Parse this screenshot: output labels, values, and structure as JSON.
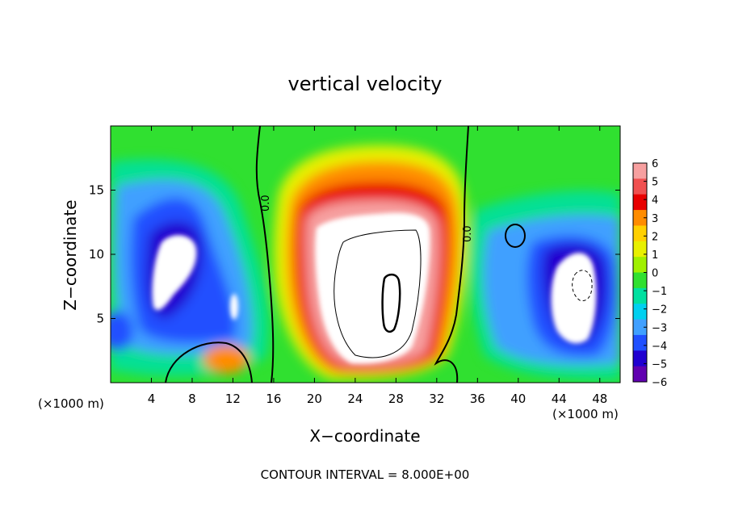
{
  "chart_data": {
    "type": "heatmap",
    "title": "vertical velocity",
    "xlabel": "X−coordinate",
    "ylabel": "Z−coordinate",
    "x_unit_left": "(×1000 m)",
    "x_unit_right": "(×1000 m)",
    "xlim": [
      0,
      50
    ],
    "ylim": [
      0,
      20
    ],
    "xticks": [
      4,
      8,
      12,
      16,
      20,
      24,
      28,
      32,
      36,
      40,
      44,
      48
    ],
    "yticks": [
      5,
      10,
      15
    ],
    "footer": "CONTOUR INTERVAL = 8.000E+00",
    "contour_label": "0.0",
    "colorbar": {
      "ticks": [
        6,
        5,
        4,
        3,
        2,
        1,
        0,
        -1,
        -2,
        -3,
        -4,
        -5,
        -6
      ],
      "tick_labels": [
        "6",
        "5",
        "4",
        "3",
        "2",
        "1",
        "0",
        "−1",
        "−2",
        "−3",
        "−4",
        "−5",
        "−6"
      ],
      "colors": [
        "#f7a0a0",
        "#f05050",
        "#e80000",
        "#ff8c00",
        "#ffd000",
        "#e8f000",
        "#a0f000",
        "#30e030",
        "#00e0a0",
        "#00d0f0",
        "#40a0ff",
        "#2050ff",
        "#2000d0",
        "#6000b0"
      ]
    },
    "regions": [
      {
        "name": "central updraft core",
        "x": 26,
        "z": 9,
        "value": 8
      },
      {
        "name": "left downdraft core",
        "x": 6.5,
        "z": 9,
        "value": -8
      },
      {
        "name": "right downdraft core",
        "x": 46,
        "z": 7,
        "value": -8
      }
    ]
  }
}
